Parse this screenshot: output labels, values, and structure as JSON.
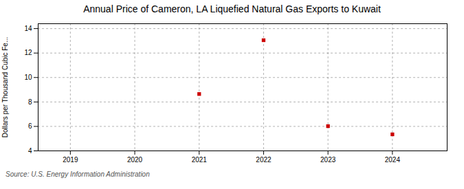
{
  "chart_data": {
    "type": "scatter",
    "title": "Annual Price of Cameron, LA Liquefied Natural Gas Exports to Kuwait",
    "ylabel": "Dollars per Thousand Cubic Fe...",
    "source": "Source: U.S. Energy Information Administration",
    "x": [
      2021,
      2022,
      2023,
      2024
    ],
    "values": [
      8.65,
      13.05,
      6.02,
      5.35
    ],
    "color": "#cc0000",
    "marker": "square",
    "xlim": [
      2018.5,
      2024.85
    ],
    "ylim": [
      4,
      14.4
    ],
    "xticks": [
      2019,
      2020,
      2021,
      2022,
      2023,
      2024
    ],
    "yticks": [
      4,
      6,
      8,
      10,
      12,
      14
    ],
    "grid": true
  }
}
